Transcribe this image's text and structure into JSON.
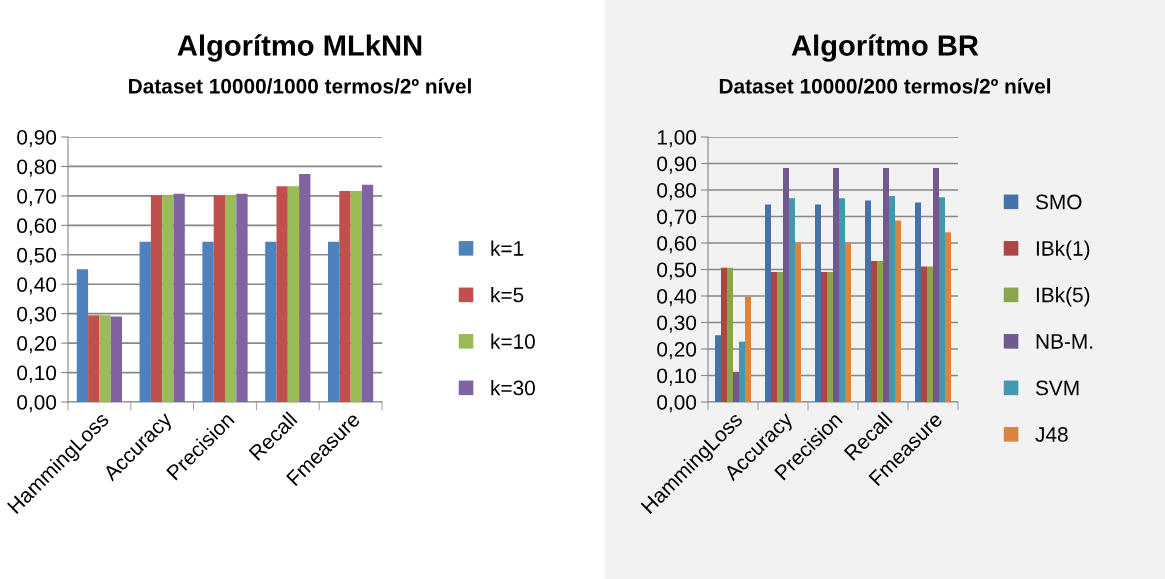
{
  "chart_data": [
    {
      "type": "bar",
      "title": "Algorítmo MLkNN",
      "subtitle": "Dataset 10000/1000 termos/2º nível",
      "categories": [
        "HammingLoss",
        "Accuracy",
        "Precision",
        "Recall",
        "Fmeasure"
      ],
      "series": [
        {
          "name": "k=1",
          "color": "#4f81bd",
          "values": [
            0.451,
            0.544,
            0.544,
            0.544,
            0.544
          ]
        },
        {
          "name": "k=5",
          "color": "#c0504d",
          "values": [
            0.295,
            0.702,
            0.702,
            0.733,
            0.717
          ]
        },
        {
          "name": "k=10",
          "color": "#9bbb59",
          "values": [
            0.295,
            0.702,
            0.702,
            0.733,
            0.717
          ]
        },
        {
          "name": "k=30",
          "color": "#8064a2",
          "values": [
            0.29,
            0.707,
            0.707,
            0.774,
            0.738
          ]
        }
      ],
      "ylim": [
        0,
        0.9
      ],
      "yticks": [
        {
          "value": 0,
          "label": "0,00"
        },
        {
          "value": 0.1,
          "label": "0,10"
        },
        {
          "value": 0.2,
          "label": "0,20"
        },
        {
          "value": 0.3,
          "label": "0,30"
        },
        {
          "value": 0.4,
          "label": "0,40"
        },
        {
          "value": 0.5,
          "label": "0,50"
        },
        {
          "value": 0.6,
          "label": "0,60"
        },
        {
          "value": 0.7,
          "label": "0,70"
        },
        {
          "value": 0.8,
          "label": "0,80"
        },
        {
          "value": 0.9,
          "label": "0,90"
        }
      ],
      "grid": "y",
      "legend": "right"
    },
    {
      "type": "bar",
      "title": "Algorítmo BR",
      "subtitle": "Dataset 10000/200 termos/2º nível",
      "categories": [
        "HammingLoss",
        "Accuracy",
        "Precision",
        "Recall",
        "Fmeasure"
      ],
      "series": [
        {
          "name": "SMO",
          "color": "#4572a7",
          "values": [
            0.252,
            0.745,
            0.745,
            0.76,
            0.753
          ]
        },
        {
          "name": "IBk(1)",
          "color": "#aa4643",
          "values": [
            0.507,
            0.491,
            0.491,
            0.532,
            0.511
          ]
        },
        {
          "name": "IBk(5)",
          "color": "#89a54e",
          "values": [
            0.507,
            0.491,
            0.491,
            0.532,
            0.511
          ]
        },
        {
          "name": "NB-M.",
          "color": "#71588f",
          "values": [
            0.114,
            0.883,
            0.883,
            0.883,
            0.883
          ]
        },
        {
          "name": "SVM",
          "color": "#4198af",
          "values": [
            0.228,
            0.769,
            0.769,
            0.777,
            0.773
          ]
        },
        {
          "name": "J48",
          "color": "#db843d",
          "values": [
            0.397,
            0.602,
            0.602,
            0.685,
            0.641
          ]
        }
      ],
      "ylim": [
        0,
        1.0
      ],
      "yticks": [
        {
          "value": 0,
          "label": "0,00"
        },
        {
          "value": 0.1,
          "label": "0,10"
        },
        {
          "value": 0.2,
          "label": "0,20"
        },
        {
          "value": 0.3,
          "label": "0,30"
        },
        {
          "value": 0.4,
          "label": "0,40"
        },
        {
          "value": 0.5,
          "label": "0,50"
        },
        {
          "value": 0.6,
          "label": "0,60"
        },
        {
          "value": 0.7,
          "label": "0,70"
        },
        {
          "value": 0.8,
          "label": "0,80"
        },
        {
          "value": 0.9,
          "label": "0,90"
        },
        {
          "value": 1.0,
          "label": "1,00"
        }
      ],
      "grid": "y",
      "legend": "right"
    }
  ]
}
